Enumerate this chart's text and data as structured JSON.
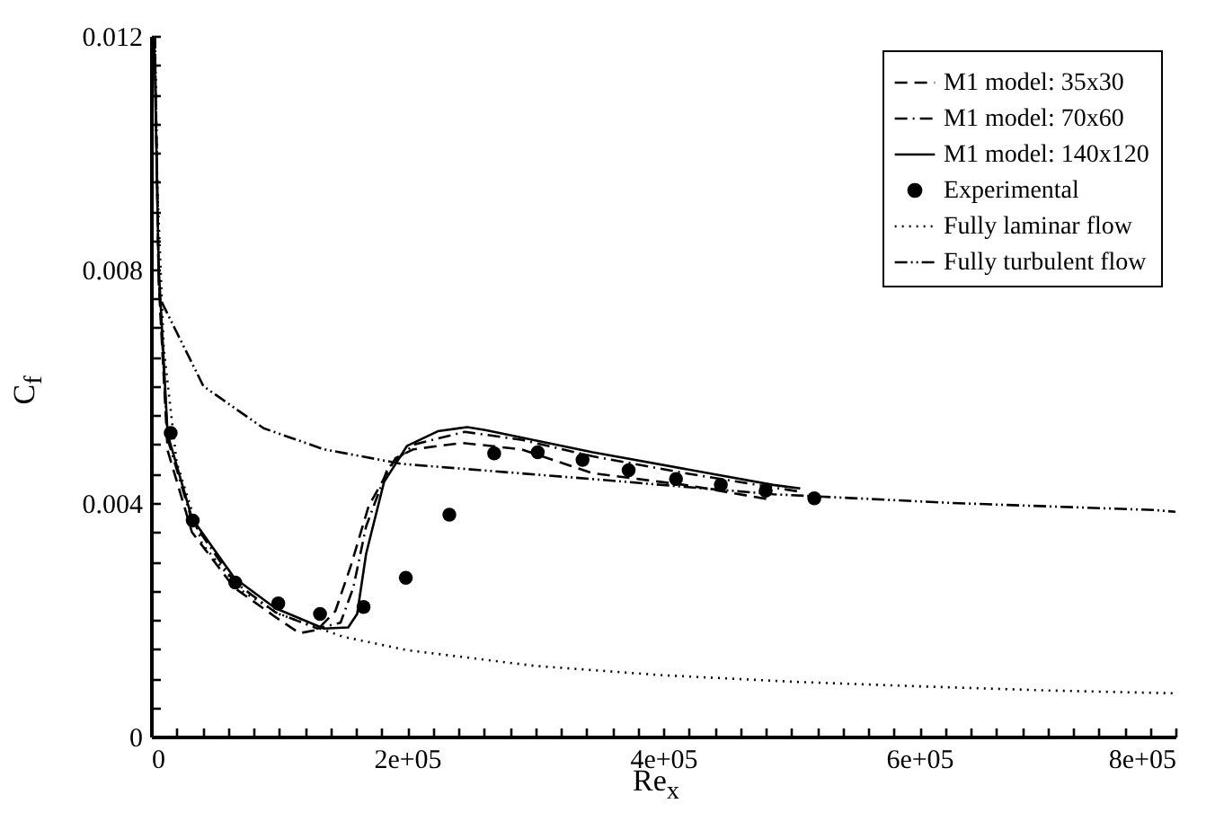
{
  "chart_data": {
    "type": "line",
    "xlabel": "Re$_{x}$",
    "ylabel": "C$_{f}$",
    "xlim": [
      0,
      800000
    ],
    "ylim": [
      0,
      0.012
    ],
    "xticks": [
      0,
      {
        "value": 20000,
        "label": null
      },
      {
        "value": 40000,
        "label": null
      },
      {
        "value": 60000,
        "label": null
      },
      {
        "value": 80000,
        "label": null
      },
      {
        "value": 100000,
        "label": null
      },
      {
        "value": 120000,
        "label": null
      },
      {
        "value": 140000,
        "label": null
      },
      {
        "value": 160000,
        "label": null
      },
      {
        "value": 180000,
        "label": null
      },
      {
        "value": 200000,
        "label": "2e+05"
      },
      {
        "value": 220000,
        "label": null
      },
      {
        "value": 240000,
        "label": null
      },
      {
        "value": 260000,
        "label": null
      },
      {
        "value": 280000,
        "label": null
      },
      {
        "value": 300000,
        "label": null
      },
      {
        "value": 320000,
        "label": null
      },
      {
        "value": 340000,
        "label": null
      },
      {
        "value": 360000,
        "label": null
      },
      {
        "value": 380000,
        "label": null
      },
      {
        "value": 400000,
        "label": "4e+05"
      },
      {
        "value": 420000,
        "label": null
      },
      {
        "value": 440000,
        "label": null
      },
      {
        "value": 460000,
        "label": null
      },
      {
        "value": 480000,
        "label": null
      },
      {
        "value": 500000,
        "label": null
      },
      {
        "value": 520000,
        "label": null
      },
      {
        "value": 540000,
        "label": null
      },
      {
        "value": 560000,
        "label": null
      },
      {
        "value": 580000,
        "label": null
      },
      {
        "value": 600000,
        "label": "6e+05"
      },
      {
        "value": 620000,
        "label": null
      },
      {
        "value": 640000,
        "label": null
      },
      {
        "value": 660000,
        "label": null
      },
      {
        "value": 680000,
        "label": null
      },
      {
        "value": 700000,
        "label": null
      },
      {
        "value": 720000,
        "label": null
      },
      {
        "value": 740000,
        "label": null
      },
      {
        "value": 760000,
        "label": null
      },
      {
        "value": 780000,
        "label": null
      },
      {
        "value": 800000,
        "label": "8e+05"
      }
    ],
    "yticks": [
      0,
      {
        "value": 0.0005,
        "label": null
      },
      {
        "value": 0.001,
        "label": null
      },
      {
        "value": 0.0015,
        "label": null
      },
      {
        "value": 0.002,
        "label": null
      },
      {
        "value": 0.0025,
        "label": null
      },
      {
        "value": 0.003,
        "label": null
      },
      {
        "value": 0.0035,
        "label": null
      },
      0.004,
      {
        "value": 0.0045,
        "label": null
      },
      {
        "value": 0.005,
        "label": null
      },
      {
        "value": 0.0055,
        "label": null
      },
      {
        "value": 0.006,
        "label": null
      },
      {
        "value": 0.0065,
        "label": null
      },
      {
        "value": 0.007,
        "label": null
      },
      {
        "value": 0.0075,
        "label": null
      },
      0.008,
      {
        "value": 0.0085,
        "label": null
      },
      {
        "value": 0.009,
        "label": null
      },
      {
        "value": 0.0095,
        "label": null
      },
      {
        "value": 0.01,
        "label": null
      },
      {
        "value": 0.0105,
        "label": null
      },
      {
        "value": 0.011,
        "label": null
      },
      {
        "value": 0.0115,
        "label": null
      },
      0.012
    ],
    "legend": "top right",
    "grid": false,
    "series": [
      {
        "name": "M1 model: 35x30",
        "line_style": "dashed",
        "color": "#000000",
        "x": [
          3000,
          6000,
          13000,
          32000,
          65000,
          97000,
          116000,
          130000,
          144000,
          156000,
          170000,
          191000,
          205000,
          243000,
          289000,
          345000,
          420000,
          486000
        ],
        "values": [
          0.012,
          0.0078,
          0.0049,
          0.0035,
          0.00255,
          0.00205,
          0.00177,
          0.00183,
          0.00215,
          0.00292,
          0.00395,
          0.00477,
          0.00492,
          0.00503,
          0.00492,
          0.00451,
          0.0043,
          0.00405
        ]
      },
      {
        "name": "M1 model: 70x60",
        "line_style": "dashdot",
        "color": "#000000",
        "x": [
          3000,
          6000,
          13000,
          32000,
          65000,
          97000,
          130000,
          148000,
          158000,
          168000,
          185000,
          205000,
          245000,
          290000,
          345000,
          420000,
          505000
        ],
        "values": [
          0.012,
          0.0079,
          0.0051,
          0.0037,
          0.00265,
          0.00213,
          0.00185,
          0.00195,
          0.00255,
          0.0036,
          0.0046,
          0.005,
          0.00522,
          0.00508,
          0.0048,
          0.0045,
          0.0042
        ]
      },
      {
        "name": "M1 model: 140x120",
        "line_style": "solid",
        "color": "#000000",
        "x": [
          2500,
          6000,
          13000,
          32000,
          65000,
          97000,
          135000,
          154000,
          161000,
          168000,
          182000,
          200000,
          224000,
          247000,
          261000,
          345000,
          486000,
          507000
        ],
        "values": [
          0.012,
          0.00805,
          0.00518,
          0.00374,
          0.00272,
          0.0022,
          0.00185,
          0.00187,
          0.0021,
          0.00313,
          0.00436,
          0.00498,
          0.00523,
          0.0053,
          0.00525,
          0.00487,
          0.00431,
          0.00425
        ]
      },
      {
        "name": "Experimental",
        "type": "scatter",
        "marker": "circle",
        "color": "#000000",
        "x": [
          15400,
          32600,
          65800,
          99400,
          132000,
          166000,
          199000,
          233000,
          268000,
          302000,
          337000,
          373000,
          410000,
          445000,
          480000,
          518000
        ],
        "values": [
          0.0052,
          0.0037,
          0.00264,
          0.00228,
          0.0021,
          0.00222,
          0.00272,
          0.0038,
          0.00485,
          0.00487,
          0.00474,
          0.00456,
          0.00441,
          0.00431,
          0.00421,
          0.00408
        ]
      },
      {
        "name": "Fully laminar flow",
        "line_style": "dotted",
        "color": "#000000",
        "x": [
          3100,
          5000,
          10000,
          20000,
          40000,
          70000,
          100000,
          150000,
          200000,
          300000,
          400000,
          500000,
          600000,
          700000,
          800000
        ],
        "values": [
          0.012,
          0.0094,
          0.00664,
          0.0047,
          0.0033,
          0.00251,
          0.0021,
          0.00171,
          0.00148,
          0.00121,
          0.00105,
          0.00094,
          0.00086,
          0.00079,
          0.00074
        ]
      },
      {
        "name": "Fully turbulent flow",
        "line_style": "dashdotdot",
        "color": "#000000",
        "x": [
          8400,
          41000,
          88000,
          135000,
          196000,
          345000,
          486000,
          626000,
          783000,
          800000
        ],
        "values": [
          0.00744,
          0.006,
          0.00528,
          0.00492,
          0.00467,
          0.00441,
          0.00415,
          0.004,
          0.00388,
          0.00385
        ]
      }
    ]
  }
}
